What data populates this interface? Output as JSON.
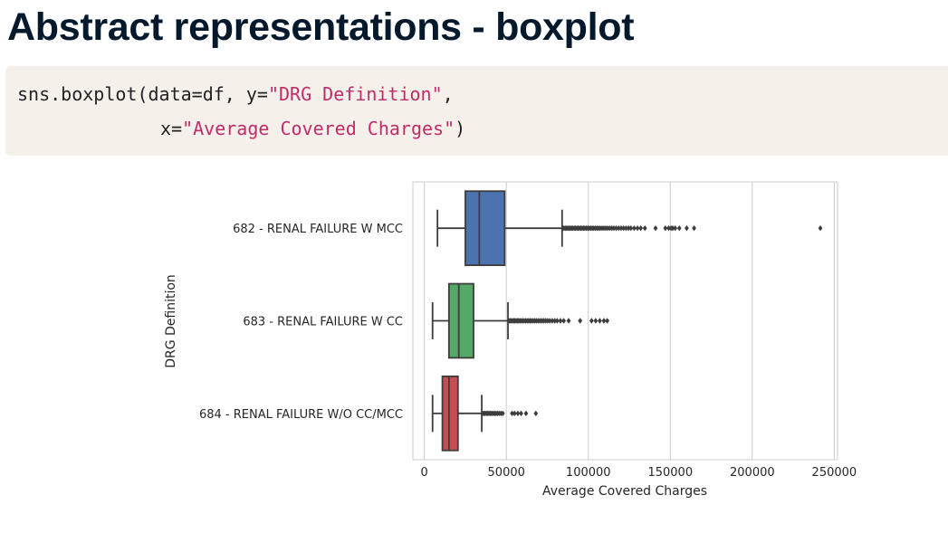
{
  "slide": {
    "title": "Abstract representations - boxplot"
  },
  "code": {
    "line1": {
      "prefix": "sns.boxplot(data=df, y=",
      "string": "\"DRG Definition\"",
      "suffix": ","
    },
    "line2": {
      "prefix": "x=",
      "string": "\"Average Covered Charges\"",
      "suffix": ")"
    },
    "string_color": "#c02b69"
  },
  "chart_data": {
    "type": "boxplot",
    "orientation": "horizontal",
    "xlabel": "Average Covered Charges",
    "ylabel": "DRG Definition",
    "xlim": [
      -7000,
      252000
    ],
    "xticks": [
      0,
      50000,
      100000,
      150000,
      200000,
      250000
    ],
    "xtick_labels": [
      "0",
      "50000",
      "100000",
      "150000",
      "200000",
      "250000"
    ],
    "grid": "vertical",
    "categories": [
      "682 - RENAL FAILURE W MCC",
      "683 - RENAL FAILURE W CC",
      "684 - RENAL FAILURE W/O CC/MCC"
    ],
    "boxes": [
      {
        "category": "682 - RENAL FAILURE W MCC",
        "color": "#4c72b0",
        "whisker_low": 8000,
        "q1": 25000,
        "median": 33500,
        "q3": 49000,
        "whisker_high": 84000,
        "outliers": [
          84500,
          85200,
          86000,
          86800,
          87500,
          88300,
          89000,
          89800,
          90600,
          91400,
          92200,
          93000,
          93800,
          94600,
          95400,
          96200,
          97000,
          97900,
          98800,
          99700,
          100600,
          101500,
          102400,
          103300,
          104300,
          105300,
          106300,
          107300,
          108400,
          109500,
          110600,
          111800,
          113000,
          114300,
          115600,
          117000,
          118500,
          120000,
          121500,
          123000,
          124500,
          126000,
          128000,
          130000,
          132000,
          134500,
          141000,
          147000,
          149000,
          150500,
          151500,
          153000,
          155500,
          160000,
          164500,
          241500
        ]
      },
      {
        "category": "683 - RENAL FAILURE W CC",
        "color": "#55a868",
        "whisker_low": 5000,
        "q1": 15000,
        "median": 21000,
        "q3": 30000,
        "whisker_high": 51000,
        "outliers": [
          51500,
          52200,
          53000,
          53800,
          54500,
          55200,
          56000,
          56800,
          57500,
          58300,
          59100,
          60000,
          60900,
          61800,
          62700,
          63600,
          64500,
          65400,
          66400,
          67400,
          68400,
          69500,
          70600,
          71700,
          72800,
          74000,
          75200,
          76500,
          78000,
          79500,
          81000,
          83000,
          85000,
          88000,
          95000,
          102000,
          104500,
          107000,
          109500,
          111500
        ]
      },
      {
        "category": "684 - RENAL FAILURE W/O CC/MCC",
        "color": "#c44e52",
        "whisker_low": 5000,
        "q1": 11000,
        "median": 15000,
        "q3": 20500,
        "whisker_high": 35000,
        "outliers": [
          35500,
          36200,
          37000,
          37800,
          38600,
          39400,
          40200,
          41000,
          41900,
          42800,
          43700,
          44600,
          45600,
          46700,
          47800,
          53500,
          55000,
          57000,
          59000,
          62000,
          68000
        ]
      }
    ]
  }
}
